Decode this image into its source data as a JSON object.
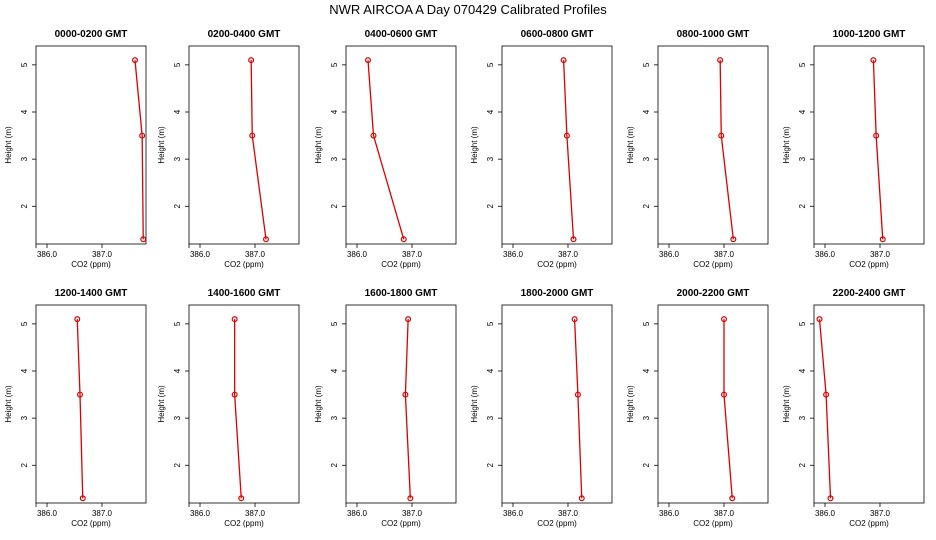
{
  "title": "NWR AIRCOA A  Day 070429  Calibrated Profiles",
  "series_color": "#dd0000",
  "chart_data": [
    {
      "type": "line",
      "title": "0000-0200 GMT",
      "xlabel": "CO2 (ppm)",
      "ylabel": "Height (m)",
      "xlim": [
        385.8,
        387.8
      ],
      "ylim": [
        1.2,
        5.4
      ],
      "xticks": [
        386.0,
        387.0
      ],
      "xtick_labels": [
        "386.0",
        "387.0"
      ],
      "yticks": [
        2,
        3,
        4,
        5
      ],
      "ytick_labels": [
        "2",
        "3",
        "4",
        "5"
      ],
      "x": [
        387.75,
        387.73,
        387.6
      ],
      "y": [
        1.3,
        3.5,
        5.1
      ]
    },
    {
      "type": "line",
      "title": "0200-0400 GMT",
      "xlabel": "CO2 (ppm)",
      "ylabel": "Height (m)",
      "xlim": [
        385.8,
        387.8
      ],
      "ylim": [
        1.2,
        5.4
      ],
      "xticks": [
        386.0,
        387.0
      ],
      "xtick_labels": [
        "386.0",
        "387.0"
      ],
      "yticks": [
        2,
        3,
        4,
        5
      ],
      "ytick_labels": [
        "2",
        "3",
        "4",
        "5"
      ],
      "x": [
        387.2,
        386.95,
        386.93
      ],
      "y": [
        1.3,
        3.5,
        5.1
      ]
    },
    {
      "type": "line",
      "title": "0400-0600 GMT",
      "xlabel": "CO2 (ppm)",
      "ylabel": "Height (m)",
      "xlim": [
        385.8,
        387.8
      ],
      "ylim": [
        1.2,
        5.4
      ],
      "xticks": [
        386.0,
        387.0
      ],
      "xtick_labels": [
        "386.0",
        "387.0"
      ],
      "yticks": [
        2,
        3,
        4,
        5
      ],
      "ytick_labels": [
        "2",
        "3",
        "4",
        "5"
      ],
      "x": [
        386.85,
        386.3,
        386.2
      ],
      "y": [
        1.3,
        3.5,
        5.1
      ]
    },
    {
      "type": "line",
      "title": "0600-0800 GMT",
      "xlabel": "CO2 (ppm)",
      "ylabel": "Height (m)",
      "xlim": [
        385.8,
        387.8
      ],
      "ylim": [
        1.2,
        5.4
      ],
      "xticks": [
        386.0,
        387.0
      ],
      "xtick_labels": [
        "386.0",
        "387.0"
      ],
      "yticks": [
        2,
        3,
        4,
        5
      ],
      "ytick_labels": [
        "2",
        "3",
        "4",
        "5"
      ],
      "x": [
        387.1,
        386.98,
        386.92
      ],
      "y": [
        1.3,
        3.5,
        5.1
      ]
    },
    {
      "type": "line",
      "title": "0800-1000 GMT",
      "xlabel": "CO2 (ppm)",
      "ylabel": "Height (m)",
      "xlim": [
        385.8,
        387.8
      ],
      "ylim": [
        1.2,
        5.4
      ],
      "xticks": [
        386.0,
        387.0
      ],
      "xtick_labels": [
        "386.0",
        "387.0"
      ],
      "yticks": [
        2,
        3,
        4,
        5
      ],
      "ytick_labels": [
        "2",
        "3",
        "4",
        "5"
      ],
      "x": [
        387.17,
        386.95,
        386.93
      ],
      "y": [
        1.3,
        3.5,
        5.1
      ]
    },
    {
      "type": "line",
      "title": "1000-1200 GMT",
      "xlabel": "CO2 (ppm)",
      "ylabel": "Height (m)",
      "xlim": [
        385.8,
        387.8
      ],
      "ylim": [
        1.2,
        5.4
      ],
      "xticks": [
        386.0,
        387.0
      ],
      "xtick_labels": [
        "386.0",
        "387.0"
      ],
      "yticks": [
        2,
        3,
        4,
        5
      ],
      "ytick_labels": [
        "2",
        "3",
        "4",
        "5"
      ],
      "x": [
        387.05,
        386.93,
        386.88
      ],
      "y": [
        1.3,
        3.5,
        5.1
      ]
    },
    {
      "type": "line",
      "title": "1200-1400 GMT",
      "xlabel": "CO2 (ppm)",
      "ylabel": "Height (m)",
      "xlim": [
        385.8,
        387.8
      ],
      "ylim": [
        1.2,
        5.4
      ],
      "xticks": [
        386.0,
        387.0
      ],
      "xtick_labels": [
        "386.0",
        "387.0"
      ],
      "yticks": [
        2,
        3,
        4,
        5
      ],
      "ytick_labels": [
        "2",
        "3",
        "4",
        "5"
      ],
      "x": [
        386.65,
        386.6,
        386.55
      ],
      "y": [
        1.3,
        3.5,
        5.1
      ]
    },
    {
      "type": "line",
      "title": "1400-1600 GMT",
      "xlabel": "CO2 (ppm)",
      "ylabel": "Height (m)",
      "xlim": [
        385.8,
        387.8
      ],
      "ylim": [
        1.2,
        5.4
      ],
      "xticks": [
        386.0,
        387.0
      ],
      "xtick_labels": [
        "386.0",
        "387.0"
      ],
      "yticks": [
        2,
        3,
        4,
        5
      ],
      "ytick_labels": [
        "2",
        "3",
        "4",
        "5"
      ],
      "x": [
        386.75,
        386.63,
        386.63
      ],
      "y": [
        1.3,
        3.5,
        5.1
      ]
    },
    {
      "type": "line",
      "title": "1600-1800 GMT",
      "xlabel": "CO2 (ppm)",
      "ylabel": "Height (m)",
      "xlim": [
        385.8,
        387.8
      ],
      "ylim": [
        1.2,
        5.4
      ],
      "xticks": [
        386.0,
        387.0
      ],
      "xtick_labels": [
        "386.0",
        "387.0"
      ],
      "yticks": [
        2,
        3,
        4,
        5
      ],
      "ytick_labels": [
        "2",
        "3",
        "4",
        "5"
      ],
      "x": [
        386.97,
        386.88,
        386.93
      ],
      "y": [
        1.3,
        3.5,
        5.1
      ]
    },
    {
      "type": "line",
      "title": "1800-2000 GMT",
      "xlabel": "CO2 (ppm)",
      "ylabel": "Height (m)",
      "xlim": [
        385.8,
        387.8
      ],
      "ylim": [
        1.2,
        5.4
      ],
      "xticks": [
        386.0,
        387.0
      ],
      "xtick_labels": [
        "386.0",
        "387.0"
      ],
      "yticks": [
        2,
        3,
        4,
        5
      ],
      "ytick_labels": [
        "2",
        "3",
        "4",
        "5"
      ],
      "x": [
        387.25,
        387.18,
        387.12
      ],
      "y": [
        1.3,
        3.5,
        5.1
      ]
    },
    {
      "type": "line",
      "title": "2000-2200 GMT",
      "xlabel": "CO2 (ppm)",
      "ylabel": "Height (m)",
      "xlim": [
        385.8,
        387.8
      ],
      "ylim": [
        1.2,
        5.4
      ],
      "xticks": [
        386.0,
        387.0
      ],
      "xtick_labels": [
        "386.0",
        "387.0"
      ],
      "yticks": [
        2,
        3,
        4,
        5
      ],
      "ytick_labels": [
        "2",
        "3",
        "4",
        "5"
      ],
      "x": [
        387.15,
        387.0,
        387.0
      ],
      "y": [
        1.3,
        3.5,
        5.1
      ]
    },
    {
      "type": "line",
      "title": "2200-2400 GMT",
      "xlabel": "CO2 (ppm)",
      "ylabel": "Height (m)",
      "xlim": [
        385.8,
        387.8
      ],
      "ylim": [
        1.2,
        5.4
      ],
      "xticks": [
        386.0,
        387.0
      ],
      "xtick_labels": [
        "386.0",
        "387.0"
      ],
      "yticks": [
        2,
        3,
        4,
        5
      ],
      "ytick_labels": [
        "2",
        "3",
        "4",
        "5"
      ],
      "x": [
        386.1,
        386.02,
        385.9
      ],
      "y": [
        1.3,
        3.5,
        5.1
      ]
    }
  ]
}
